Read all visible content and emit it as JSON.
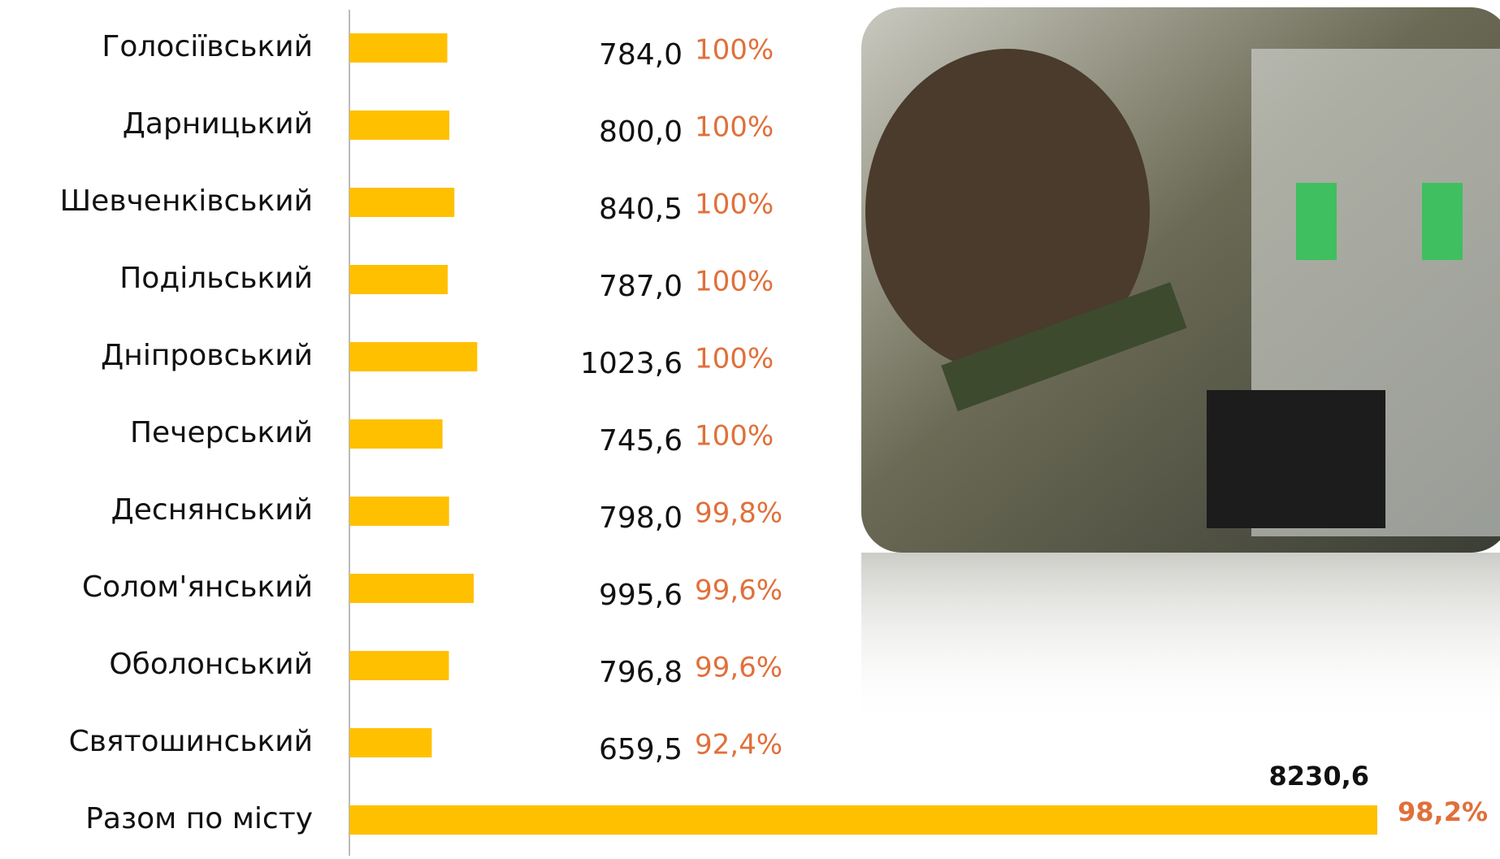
{
  "chart_data": {
    "type": "bar",
    "orientation": "horizontal",
    "categories": [
      "Голосіївський",
      "Дарницький",
      "Шевченківський",
      "Подільський",
      "Дніпровський",
      "Печерський",
      "Деснянський",
      "Солом'янський",
      "Оболонський",
      "Святошинський",
      "Разом по місту"
    ],
    "values": [
      784.0,
      800.0,
      840.5,
      787.0,
      1023.6,
      745.6,
      798.0,
      995.6,
      796.8,
      659.5,
      8230.6
    ],
    "value_labels": [
      "784,0",
      "800,0",
      "840,5",
      "787,0",
      "1023,6",
      "745,6",
      "798,0",
      "995,6",
      "796,8",
      "659,5",
      "8230,6"
    ],
    "share_labels": [
      "100%",
      "100%",
      "100%",
      "100%",
      "100%",
      "100%",
      "99,8%",
      "99,6%",
      "99,6%",
      "92,4%",
      "98,2%"
    ],
    "color": "#ffc000"
  }
}
